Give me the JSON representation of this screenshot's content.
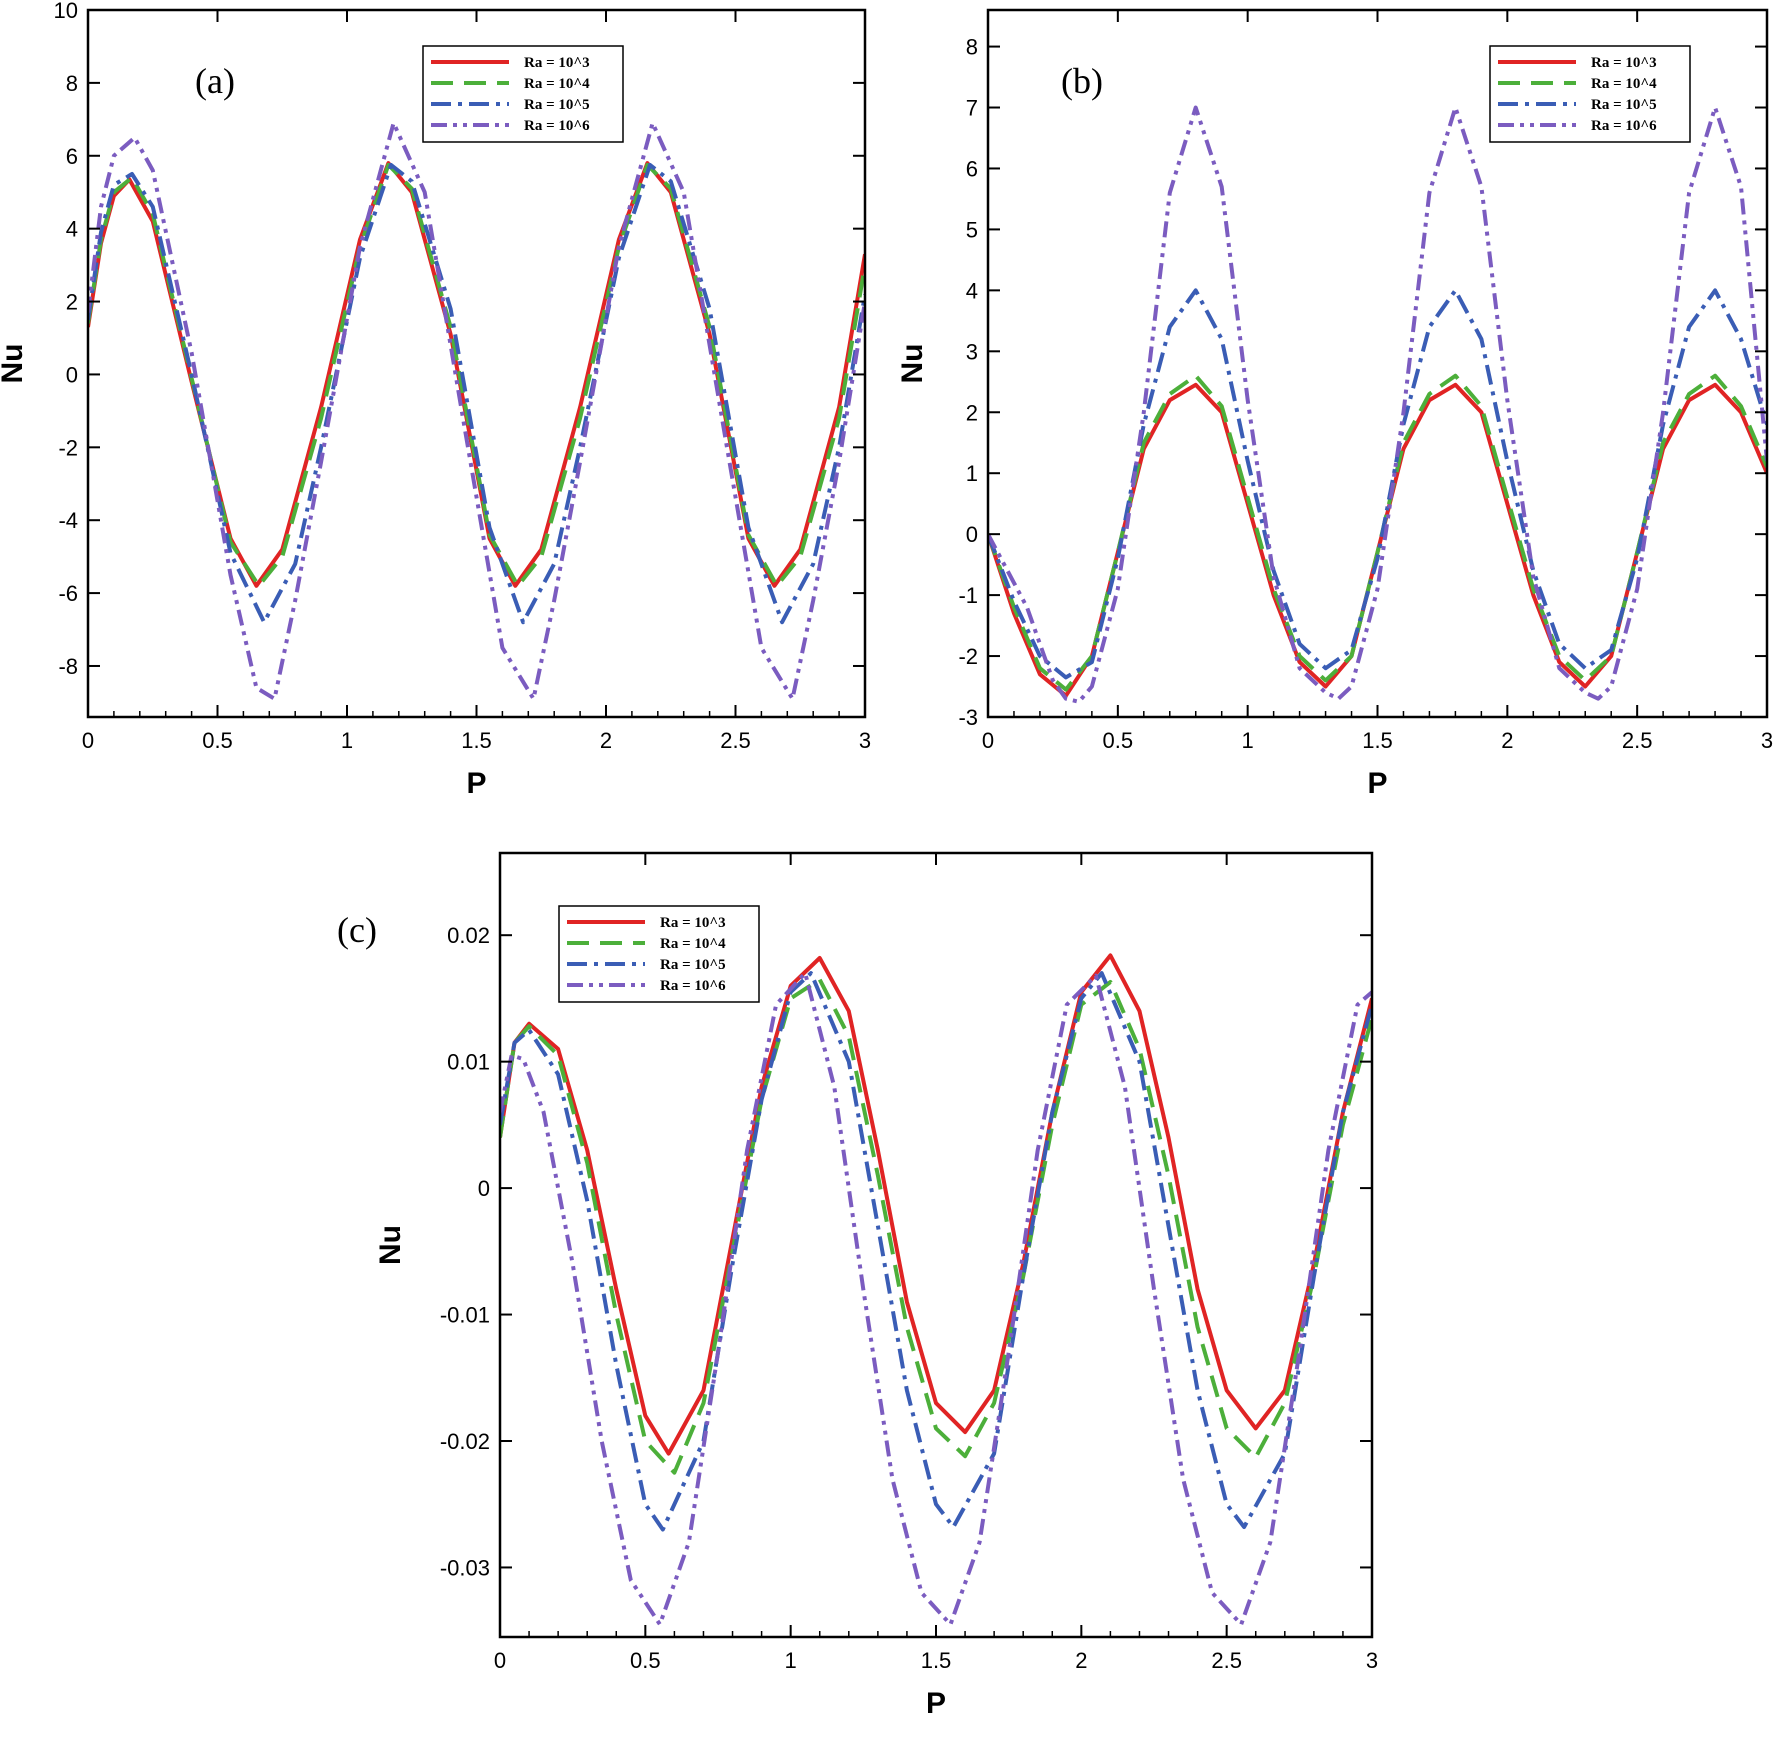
{
  "chart_data": [
    {
      "type": "line",
      "panel": "(a)",
      "xlabel": "P",
      "ylabel": "Nu",
      "xlim": [
        0,
        3
      ],
      "ylim": [
        -9.4,
        10
      ],
      "xticks": [
        "0",
        "0.5",
        "1",
        "1.5",
        "2",
        "2.5",
        "3"
      ],
      "xtick_values": [
        0,
        0.5,
        1,
        1.5,
        2,
        2.5,
        3
      ],
      "yticks": [
        "-8",
        "-6",
        "-4",
        "-2",
        "0",
        "2",
        "4",
        "6",
        "8",
        "10"
      ],
      "ytick_values": [
        -8,
        -6,
        -4,
        -2,
        0,
        2,
        4,
        6,
        8,
        10
      ],
      "legend_position": "top-right",
      "grid": false,
      "series": [
        {
          "name": "Ra = 10^3",
          "color": "#e02424",
          "dash": "solid",
          "x": [
            0,
            0.05,
            0.1,
            0.16,
            0.25,
            0.4,
            0.55,
            0.65,
            0.75,
            0.9,
            1.05,
            1.16,
            1.25,
            1.4,
            1.55,
            1.65,
            1.75,
            1.9,
            2.05,
            2.16,
            2.25,
            2.4,
            2.55,
            2.65,
            2.75,
            2.9,
            3.0
          ],
          "y": [
            1.3,
            3.6,
            4.9,
            5.35,
            4.2,
            -0.2,
            -4.5,
            -5.8,
            -4.8,
            -0.9,
            3.7,
            5.8,
            5.0,
            1.1,
            -4.5,
            -5.8,
            -4.8,
            -0.9,
            3.7,
            5.8,
            5.0,
            1.1,
            -4.5,
            -5.8,
            -4.8,
            -0.9,
            3.3
          ]
        },
        {
          "name": "Ra = 10^4",
          "color": "#4caf3a",
          "dash": "longdash",
          "x": [
            0,
            0.05,
            0.1,
            0.17,
            0.25,
            0.4,
            0.55,
            0.66,
            0.75,
            0.9,
            1.05,
            1.16,
            1.25,
            1.4,
            1.55,
            1.66,
            1.75,
            1.9,
            2.05,
            2.16,
            2.25,
            2.4,
            2.55,
            2.66,
            2.75,
            2.9,
            3.0
          ],
          "y": [
            1.4,
            3.7,
            5.0,
            5.4,
            4.4,
            -0.1,
            -4.6,
            -5.8,
            -5.0,
            -1.2,
            3.5,
            5.75,
            5.1,
            1.3,
            -4.4,
            -5.8,
            -5.0,
            -1.2,
            3.5,
            5.75,
            5.1,
            1.3,
            -4.4,
            -5.8,
            -5.0,
            -1.2,
            3.0
          ]
        },
        {
          "name": "Ra = 10^5",
          "color": "#3a5db5",
          "dash": "dashdot",
          "x": [
            0,
            0.05,
            0.1,
            0.17,
            0.25,
            0.4,
            0.55,
            0.68,
            0.8,
            0.9,
            1.05,
            1.17,
            1.25,
            1.4,
            1.55,
            1.68,
            1.8,
            1.9,
            2.05,
            2.17,
            2.25,
            2.4,
            2.55,
            2.68,
            2.8,
            2.9,
            3.0
          ],
          "y": [
            1.5,
            3.9,
            5.2,
            5.5,
            4.6,
            0.0,
            -4.9,
            -6.8,
            -5.2,
            -2.0,
            3.2,
            5.75,
            5.3,
            1.8,
            -4.2,
            -6.8,
            -5.2,
            -2.0,
            3.2,
            5.75,
            5.3,
            1.8,
            -4.2,
            -6.8,
            -5.2,
            -2.0,
            2.2
          ]
        },
        {
          "name": "Ra = 10^6",
          "color": "#7b5cc0",
          "dash": "dashdotdot",
          "x": [
            0,
            0.05,
            0.1,
            0.18,
            0.25,
            0.4,
            0.55,
            0.65,
            0.72,
            0.8,
            0.9,
            1.05,
            1.18,
            1.3,
            1.45,
            1.6,
            1.72,
            1.8,
            1.9,
            2.05,
            2.18,
            2.3,
            2.45,
            2.6,
            2.72,
            2.8,
            2.9,
            3.0
          ],
          "y": [
            1.7,
            4.6,
            6.0,
            6.5,
            5.6,
            0.6,
            -5.5,
            -8.6,
            -8.9,
            -6.2,
            -2.4,
            3.5,
            6.9,
            5.0,
            -1.3,
            -7.5,
            -8.9,
            -6.2,
            -2.4,
            3.5,
            6.9,
            5.0,
            -1.3,
            -7.5,
            -8.9,
            -6.2,
            -2.4,
            2.0
          ]
        }
      ]
    },
    {
      "type": "line",
      "panel": "(b)",
      "xlabel": "P",
      "ylabel": "Nu",
      "xlim": [
        0,
        3
      ],
      "ylim": [
        -3,
        8.6
      ],
      "xticks": [
        "0",
        "0.5",
        "1",
        "1.5",
        "2",
        "2.5",
        "3"
      ],
      "xtick_values": [
        0,
        0.5,
        1,
        1.5,
        2,
        2.5,
        3
      ],
      "yticks": [
        "-3",
        "-2",
        "-1",
        "0",
        "1",
        "2",
        "3",
        "4",
        "5",
        "6",
        "7",
        "8"
      ],
      "ytick_values": [
        -3,
        -2,
        -1,
        0,
        1,
        2,
        3,
        4,
        5,
        6,
        7,
        8
      ],
      "legend_position": "top-right",
      "grid": false,
      "series": [
        {
          "name": "Ra = 10^3",
          "color": "#e02424",
          "dash": "solid",
          "x": [
            0,
            0.1,
            0.2,
            0.3,
            0.4,
            0.5,
            0.6,
            0.7,
            0.8,
            0.9,
            1.0,
            1.1,
            1.2,
            1.3,
            1.4,
            1.5,
            1.6,
            1.7,
            1.8,
            1.9,
            2.0,
            2.1,
            2.2,
            2.3,
            2.4,
            2.5,
            2.6,
            2.7,
            2.8,
            2.9,
            3.0
          ],
          "y": [
            0.0,
            -1.3,
            -2.3,
            -2.65,
            -2.0,
            -0.3,
            1.4,
            2.2,
            2.45,
            2.0,
            0.5,
            -1.0,
            -2.1,
            -2.5,
            -2.0,
            -0.3,
            1.4,
            2.2,
            2.45,
            2.0,
            0.5,
            -1.0,
            -2.1,
            -2.5,
            -2.0,
            -0.3,
            1.4,
            2.2,
            2.45,
            2.0,
            1.0
          ]
        },
        {
          "name": "Ra = 10^4",
          "color": "#4caf3a",
          "dash": "longdash",
          "x": [
            0,
            0.1,
            0.2,
            0.3,
            0.4,
            0.5,
            0.6,
            0.7,
            0.8,
            0.9,
            1.0,
            1.1,
            1.2,
            1.3,
            1.4,
            1.5,
            1.6,
            1.7,
            1.8,
            1.9,
            2.0,
            2.1,
            2.2,
            2.3,
            2.4,
            2.5,
            2.6,
            2.7,
            2.8,
            2.9,
            3.0
          ],
          "y": [
            0.0,
            -1.2,
            -2.2,
            -2.55,
            -2.0,
            -0.3,
            1.5,
            2.3,
            2.6,
            2.1,
            0.6,
            -0.9,
            -2.0,
            -2.4,
            -2.0,
            -0.3,
            1.5,
            2.3,
            2.6,
            2.1,
            0.6,
            -0.9,
            -2.0,
            -2.4,
            -2.0,
            -0.3,
            1.5,
            2.3,
            2.6,
            2.1,
            1.1
          ]
        },
        {
          "name": "Ra = 10^5",
          "color": "#3a5db5",
          "dash": "dashdot",
          "x": [
            0,
            0.1,
            0.2,
            0.3,
            0.4,
            0.5,
            0.6,
            0.7,
            0.8,
            0.9,
            1.0,
            1.1,
            1.2,
            1.3,
            1.4,
            1.5,
            1.6,
            1.7,
            1.8,
            1.9,
            2.0,
            2.1,
            2.2,
            2.3,
            2.4,
            2.5,
            2.6,
            2.7,
            2.8,
            2.9,
            3.0
          ],
          "y": [
            0.0,
            -1.1,
            -2.0,
            -2.35,
            -2.1,
            -0.4,
            1.8,
            3.4,
            4.0,
            3.2,
            1.2,
            -0.6,
            -1.8,
            -2.2,
            -1.9,
            -0.4,
            1.8,
            3.4,
            4.0,
            3.2,
            1.2,
            -0.6,
            -1.8,
            -2.2,
            -1.9,
            -0.4,
            1.8,
            3.4,
            4.0,
            3.2,
            1.8
          ]
        },
        {
          "name": "Ra = 10^6",
          "color": "#7b5cc0",
          "dash": "dashdotdot",
          "x": [
            0,
            0.1,
            0.15,
            0.2,
            0.25,
            0.3,
            0.35,
            0.4,
            0.5,
            0.6,
            0.7,
            0.8,
            0.9,
            1.0,
            1.1,
            1.2,
            1.3,
            1.35,
            1.4,
            1.5,
            1.6,
            1.7,
            1.8,
            1.9,
            2.0,
            2.1,
            2.2,
            2.3,
            2.35,
            2.4,
            2.5,
            2.6,
            2.7,
            2.8,
            2.9,
            3.0
          ],
          "y": [
            0.0,
            -0.8,
            -1.2,
            -1.8,
            -2.4,
            -2.7,
            -2.75,
            -2.5,
            -0.9,
            2.0,
            5.6,
            7.0,
            5.7,
            2.2,
            -0.7,
            -2.2,
            -2.6,
            -2.7,
            -2.5,
            -0.9,
            2.0,
            5.6,
            7.0,
            5.7,
            2.2,
            -0.7,
            -2.2,
            -2.6,
            -2.7,
            -2.5,
            -0.9,
            2.0,
            5.6,
            7.0,
            5.7,
            1.2
          ]
        }
      ]
    },
    {
      "type": "line",
      "panel": "(c)",
      "xlabel": "P",
      "ylabel": "Nu",
      "xlim": [
        0,
        3
      ],
      "ylim": [
        -0.0355,
        0.0265
      ],
      "xticks": [
        "0",
        "0.5",
        "1",
        "1.5",
        "2",
        "2.5",
        "3"
      ],
      "xtick_values": [
        0,
        0.5,
        1,
        1.5,
        2,
        2.5,
        3
      ],
      "yticks": [
        "-0.03",
        "-0.02",
        "-0.01",
        "0",
        "0.01",
        "0.02"
      ],
      "ytick_values": [
        -0.03,
        -0.02,
        -0.01,
        0,
        0.01,
        0.02
      ],
      "legend_position": "top-left",
      "grid": false,
      "series": [
        {
          "name": "Ra = 10^3",
          "color": "#e02424",
          "dash": "solid",
          "x": [
            0,
            0.05,
            0.1,
            0.2,
            0.3,
            0.4,
            0.5,
            0.58,
            0.7,
            0.8,
            0.9,
            1.0,
            1.1,
            1.2,
            1.3,
            1.4,
            1.5,
            1.6,
            1.7,
            1.8,
            1.9,
            2.0,
            2.1,
            2.2,
            2.3,
            2.4,
            2.5,
            2.6,
            2.7,
            2.8,
            2.9,
            3.0
          ],
          "y": [
            0.004,
            0.0115,
            0.013,
            0.011,
            0.003,
            -0.008,
            -0.018,
            -0.021,
            -0.016,
            -0.004,
            0.008,
            0.016,
            0.0182,
            0.014,
            0.003,
            -0.009,
            -0.017,
            -0.0193,
            -0.016,
            -0.006,
            0.006,
            0.0155,
            0.0184,
            0.014,
            0.004,
            -0.008,
            -0.016,
            -0.019,
            -0.016,
            -0.006,
            0.006,
            0.015
          ]
        },
        {
          "name": "Ra = 10^4",
          "color": "#4caf3a",
          "dash": "longdash",
          "x": [
            0,
            0.05,
            0.1,
            0.2,
            0.3,
            0.4,
            0.5,
            0.6,
            0.7,
            0.8,
            0.9,
            1.0,
            1.1,
            1.2,
            1.3,
            1.4,
            1.5,
            1.6,
            1.7,
            1.8,
            1.9,
            2.0,
            2.1,
            2.2,
            2.3,
            2.4,
            2.5,
            2.6,
            2.7,
            2.8,
            2.9,
            3.0
          ],
          "y": [
            0.004,
            0.0115,
            0.0128,
            0.0105,
            0.002,
            -0.01,
            -0.02,
            -0.0225,
            -0.017,
            -0.005,
            0.007,
            0.015,
            0.0165,
            0.012,
            0.001,
            -0.011,
            -0.019,
            -0.0212,
            -0.017,
            -0.007,
            0.005,
            0.0145,
            0.0163,
            0.011,
            0.001,
            -0.011,
            -0.019,
            -0.0213,
            -0.017,
            -0.007,
            0.005,
            0.0135
          ]
        },
        {
          "name": "Ra = 10^5",
          "color": "#3a5db5",
          "dash": "dashdot",
          "x": [
            0,
            0.05,
            0.1,
            0.2,
            0.3,
            0.4,
            0.5,
            0.56,
            0.7,
            0.8,
            0.9,
            1.0,
            1.07,
            1.2,
            1.3,
            1.4,
            1.5,
            1.56,
            1.7,
            1.8,
            1.9,
            2.0,
            2.07,
            2.2,
            2.3,
            2.4,
            2.5,
            2.56,
            2.7,
            2.8,
            2.9,
            3.0
          ],
          "y": [
            0.005,
            0.0115,
            0.0125,
            0.009,
            -0.001,
            -0.014,
            -0.025,
            -0.027,
            -0.02,
            -0.006,
            0.007,
            0.0155,
            0.017,
            0.01,
            -0.003,
            -0.016,
            -0.025,
            -0.0268,
            -0.021,
            -0.007,
            0.006,
            0.015,
            0.017,
            0.01,
            -0.003,
            -0.016,
            -0.025,
            -0.0268,
            -0.021,
            -0.007,
            0.006,
            0.0145
          ]
        },
        {
          "name": "Ra = 10^6",
          "color": "#7b5cc0",
          "dash": "dashdotdot",
          "x": [
            0,
            0.04,
            0.08,
            0.15,
            0.25,
            0.35,
            0.45,
            0.55,
            0.65,
            0.75,
            0.85,
            0.95,
            1.05,
            1.15,
            1.25,
            1.35,
            1.45,
            1.55,
            1.65,
            1.75,
            1.85,
            1.95,
            2.05,
            2.15,
            2.25,
            2.35,
            2.45,
            2.55,
            2.65,
            2.75,
            2.85,
            2.95,
            3.0
          ],
          "y": [
            0.006,
            0.0105,
            0.0102,
            0.006,
            -0.006,
            -0.02,
            -0.031,
            -0.0345,
            -0.028,
            -0.013,
            0.003,
            0.0145,
            0.017,
            0.008,
            -0.008,
            -0.023,
            -0.032,
            -0.0345,
            -0.028,
            -0.013,
            0.003,
            0.0145,
            0.0168,
            0.008,
            -0.008,
            -0.023,
            -0.032,
            -0.0345,
            -0.028,
            -0.013,
            0.003,
            0.0145,
            0.0155
          ]
        }
      ]
    }
  ]
}
